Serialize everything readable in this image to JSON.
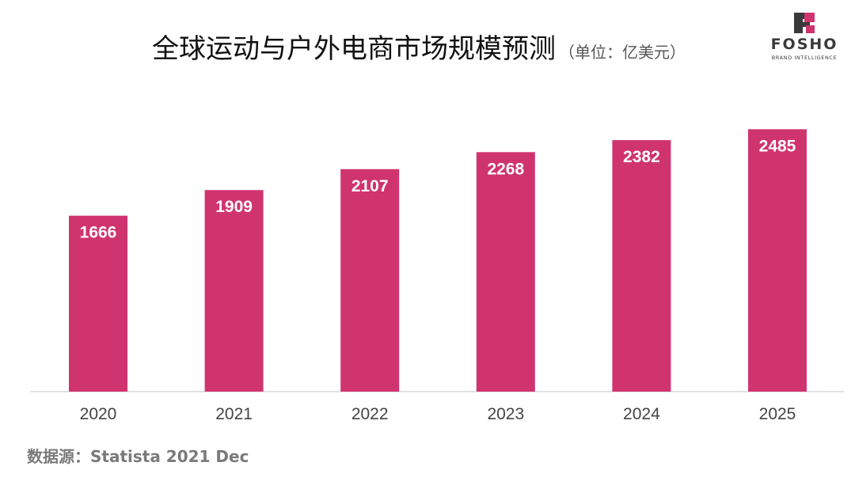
{
  "chart_data": {
    "type": "bar",
    "title": "全球运动与户外电商市场规模预测",
    "unit_note": "（单位：亿美元）",
    "categories": [
      "2020",
      "2021",
      "2022",
      "2023",
      "2024",
      "2025"
    ],
    "values": [
      1666,
      1909,
      2107,
      2268,
      2382,
      2485
    ],
    "ylim": [
      0,
      2600
    ],
    "grid": false,
    "data_labels": true,
    "bar_color": "#d0346f",
    "label_color": "#ffffff"
  },
  "source": "数据源：Statista 2021 Dec",
  "logo": {
    "brand": "FOSHO",
    "tagline": "BRAND INTELLIGENCE",
    "accent": "#d0346f",
    "dark": "#3a3a3a"
  }
}
